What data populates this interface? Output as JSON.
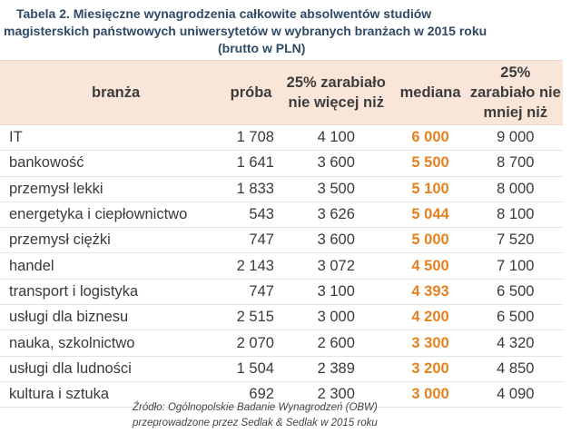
{
  "caption": {
    "line1": "Tabela 2. Miesięczne wynagrodzenia całkowite absolwentów studiów",
    "line2": "magisterskich państwowych uniwersytetów w wybranych branżach w 2015 roku",
    "line3": "(brutto w PLN)"
  },
  "table": {
    "headers": {
      "branza": "branża",
      "proba": "próba",
      "q75_line1": "25% zarabiało",
      "q75_line2": "nie więcej niż",
      "mediana": "mediana",
      "q25_line1": "25%",
      "q25_line2": "zarabiało nie",
      "q25_line3": "mniej niż"
    },
    "rows": [
      {
        "branza": "IT",
        "proba": "1 708",
        "q75": "4 100",
        "mediana": "6 000",
        "q25": "9 000"
      },
      {
        "branza": "bankowość",
        "proba": "1 641",
        "q75": "3 600",
        "mediana": "5 500",
        "q25": "8 700"
      },
      {
        "branza": "przemysł lekki",
        "proba": "1 833",
        "q75": "3 500",
        "mediana": "5 100",
        "q25": "8 000"
      },
      {
        "branza": "energetyka i ciepłownictwo",
        "proba": "543",
        "q75": "3 626",
        "mediana": "5 044",
        "q25": "8 100"
      },
      {
        "branza": "przemysł ciężki",
        "proba": "747",
        "q75": "3 600",
        "mediana": "5 000",
        "q25": "7 520"
      },
      {
        "branza": "handel",
        "proba": "2 143",
        "q75": "3 072",
        "mediana": "4 500",
        "q25": "7 100"
      },
      {
        "branza": "transport i logistyka",
        "proba": "747",
        "q75": "3 100",
        "mediana": "4 393",
        "q25": "6 500"
      },
      {
        "branza": "usługi dla biznesu",
        "proba": "2 515",
        "q75": "3 000",
        "mediana": "4 200",
        "q25": "6 500"
      },
      {
        "branza": "nauka, szkolnictwo",
        "proba": "2 070",
        "q75": "2 600",
        "mediana": "3 300",
        "q25": "4 320"
      },
      {
        "branza": "usługi dla ludności",
        "proba": "1 504",
        "q75": "2 389",
        "mediana": "3 200",
        "q25": "4 850"
      },
      {
        "branza": "kultura i sztuka",
        "proba": "692",
        "q75": "2 300",
        "mediana": "3 000",
        "q25": "4 090"
      }
    ]
  },
  "source": {
    "line1": "Źródło: Ogólnopolskie Badanie Wynagrodzeń (OBW)",
    "line2": "przeprowadzone  przez Sedlak & Sedlak w 2015 roku"
  },
  "colors": {
    "header_bg": "#f9e6d8",
    "median": "#e6811f",
    "caption": "#2e4a66"
  }
}
